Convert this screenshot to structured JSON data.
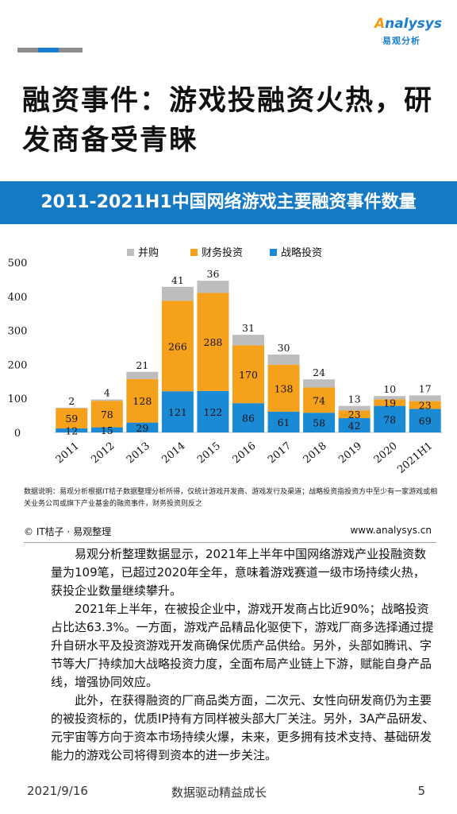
{
  "header": {
    "logo_text": "nalysys",
    "logo_letter": "A",
    "logo_cn": "易观分析",
    "bar_colors": [
      "#8c8c8c",
      "#1a7ed0",
      "#8c8c8c"
    ]
  },
  "title": "融资事件：游戏投融资火热，研发商备受青睐",
  "banner": "2011-2021H1中国网络游戏主要融资事件数量",
  "chart_data": {
    "type": "bar",
    "stacked": true,
    "categories": [
      "2011",
      "2012",
      "2013",
      "2014",
      "2015",
      "2016",
      "2017",
      "2018",
      "2019",
      "2020",
      "2021H1"
    ],
    "series": [
      {
        "name": "战略投资",
        "color": "#1a8ad4",
        "values": [
          12,
          15,
          29,
          121,
          122,
          86,
          61,
          58,
          42,
          78,
          69
        ]
      },
      {
        "name": "财务投资",
        "color": "#f5a11c",
        "values": [
          59,
          78,
          128,
          266,
          288,
          170,
          138,
          74,
          23,
          19,
          23
        ]
      },
      {
        "name": "并购",
        "color": "#bdbdbd",
        "values": [
          2,
          4,
          21,
          41,
          36,
          31,
          30,
          24,
          13,
          10,
          17
        ]
      }
    ],
    "legend_order": [
      "并购",
      "财务投资",
      "战略投资"
    ],
    "legend_position": "top",
    "ylim": [
      0,
      500
    ],
    "yticks": [
      0,
      100,
      200,
      300,
      400,
      500
    ],
    "grid": false,
    "data_labels": true
  },
  "note": "数据说明：易观分析根据IT桔子数据整理分析所得，仅统计游戏开发商、游戏发行及渠道；战略投资指投资方中至少有一家游戏或相关业务公司或旗下产业基金的融资事件，财务投资则反之",
  "source": "© IT桔子 · 易观整理",
  "url": "www.analysys.cn",
  "paragraphs": [
    "易观分析整理数据显示，2021年上半年中国网络游戏产业投融资数量为109笔，已超过2020年全年，意味着游戏赛道一级市场持续火热，获投企业数量继续攀升。",
    "2021年上半年，在被投企业中，游戏开发商占比近90%；战略投资占比达63.3%。一方面，游戏产品精品化驱使下，游戏厂商多选择通过提升自研水平及投资游戏开发商确保优质产品供给。另外，头部如腾讯、字节等大厂持续加大战略投资力度，全面布局产业链上下游，赋能自身产品线，增强协同效应。",
    "此外，在获得融资的厂商品类方面，二次元、女性向研发商仍为主要的被投资标的，优质IP持有方同样被头部大厂关注。另外，3A产品研发、元宇宙等方向于资本市场持续火爆，未来，更多拥有技术支持、基础研发能力的游戏公司将得到资本的进一步关注。"
  ],
  "footer": {
    "date": "2021/9/16",
    "slogan": "数据驱动精益成长",
    "page": "5"
  }
}
